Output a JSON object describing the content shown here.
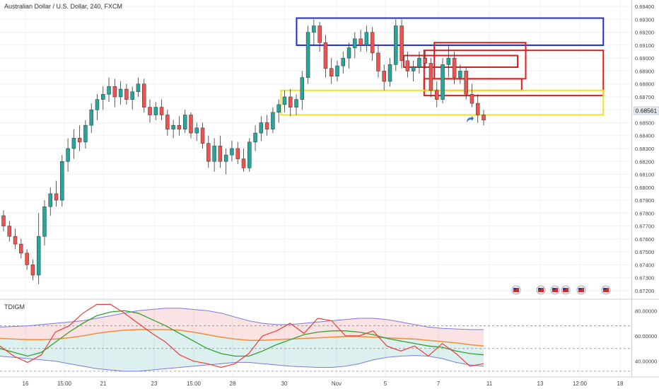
{
  "symbol_title": "Australian Dollar / U.S. Dollar, 240, FXCM",
  "indicator_label": "TDIGM",
  "last_price_label": "0.68561",
  "colors": {
    "bull": "#26a69a",
    "bear": "#ef5350",
    "blue_box": "#1a2fd6",
    "red_box": "#e01b1b",
    "yellow_box": "#f0e030",
    "rsi": "#ef3b3b",
    "ma_green": "#33a02c",
    "ma_orange": "#f08c3a",
    "band": "#7b7bd6",
    "grid": "#eef0f4"
  },
  "chart_data": [
    {
      "type": "candlestick",
      "title": "Australian Dollar / U.S. Dollar, 240, FXCM",
      "y_tick_labels": [
        "0.69400",
        "0.69300",
        "0.69200",
        "0.69100",
        "0.69000",
        "0.68900",
        "0.68800",
        "0.68700",
        "0.68600",
        "0.68500",
        "0.68400",
        "0.68300",
        "0.68200",
        "0.68100",
        "0.68000",
        "0.67900",
        "0.67800",
        "0.67700",
        "0.67600",
        "0.67500",
        "0.67400",
        "0.67300",
        "0.67200"
      ],
      "ylim": [
        0.6715,
        0.6945
      ],
      "x_tick_labels": [
        "16",
        "15:00",
        "21",
        "23",
        "15:00",
        "28",
        "30",
        "Nov",
        "5",
        "7",
        "11",
        "13",
        "12:00",
        "18"
      ],
      "candles": [
        [
          0.6778,
          0.6782,
          0.6766,
          0.677
        ],
        [
          0.677,
          0.6774,
          0.6758,
          0.6762
        ],
        [
          0.6762,
          0.6768,
          0.6752,
          0.6756
        ],
        [
          0.6756,
          0.676,
          0.6745,
          0.6749
        ],
        [
          0.6749,
          0.6752,
          0.6736,
          0.674
        ],
        [
          0.674,
          0.6744,
          0.6728,
          0.6732
        ],
        [
          0.6732,
          0.678,
          0.6725,
          0.6762
        ],
        [
          0.6762,
          0.679,
          0.6755,
          0.6785
        ],
        [
          0.6785,
          0.68,
          0.6778,
          0.6795
        ],
        [
          0.6795,
          0.6805,
          0.6785,
          0.679
        ],
        [
          0.679,
          0.6825,
          0.6785,
          0.682
        ],
        [
          0.682,
          0.6838,
          0.6812,
          0.683
        ],
        [
          0.683,
          0.6845,
          0.6822,
          0.6838
        ],
        [
          0.6838,
          0.6848,
          0.6828,
          0.6835
        ],
        [
          0.6835,
          0.6852,
          0.683,
          0.6848
        ],
        [
          0.6848,
          0.6865,
          0.6842,
          0.686
        ],
        [
          0.686,
          0.6872,
          0.6852,
          0.6868
        ],
        [
          0.6868,
          0.6878,
          0.686,
          0.6872
        ],
        [
          0.6872,
          0.6885,
          0.6866,
          0.6878
        ],
        [
          0.6878,
          0.6884,
          0.6862,
          0.687
        ],
        [
          0.687,
          0.6882,
          0.6864,
          0.6876
        ],
        [
          0.6876,
          0.688,
          0.6864,
          0.6868
        ],
        [
          0.6868,
          0.6878,
          0.686,
          0.6874
        ],
        [
          0.6874,
          0.6885,
          0.687,
          0.688
        ],
        [
          0.688,
          0.6884,
          0.6858,
          0.6862
        ],
        [
          0.6862,
          0.6868,
          0.685,
          0.6856
        ],
        [
          0.6856,
          0.6866,
          0.6852,
          0.6862
        ],
        [
          0.6862,
          0.6868,
          0.6852,
          0.6856
        ],
        [
          0.6856,
          0.686,
          0.684,
          0.6845
        ],
        [
          0.6845,
          0.6852,
          0.6838,
          0.6848
        ],
        [
          0.6848,
          0.6855,
          0.684,
          0.6845
        ],
        [
          0.6845,
          0.686,
          0.6842,
          0.6856
        ],
        [
          0.6856,
          0.6858,
          0.6838,
          0.6842
        ],
        [
          0.6842,
          0.685,
          0.6836,
          0.6846
        ],
        [
          0.6846,
          0.685,
          0.683,
          0.6834
        ],
        [
          0.6834,
          0.684,
          0.6815,
          0.682
        ],
        [
          0.682,
          0.6838,
          0.6812,
          0.6832
        ],
        [
          0.6832,
          0.684,
          0.6815,
          0.682
        ],
        [
          0.682,
          0.683,
          0.681,
          0.6825
        ],
        [
          0.6825,
          0.6836,
          0.682,
          0.683
        ],
        [
          0.683,
          0.6835,
          0.6818,
          0.6822
        ],
        [
          0.6822,
          0.683,
          0.6812,
          0.6815
        ],
        [
          0.6815,
          0.6838,
          0.6812,
          0.6835
        ],
        [
          0.6835,
          0.6848,
          0.6828,
          0.6842
        ],
        [
          0.6842,
          0.6855,
          0.6836,
          0.685
        ],
        [
          0.685,
          0.6856,
          0.684,
          0.6845
        ],
        [
          0.6845,
          0.6862,
          0.6842,
          0.6858
        ],
        [
          0.6858,
          0.6868,
          0.685,
          0.6864
        ],
        [
          0.6864,
          0.6875,
          0.6858,
          0.687
        ],
        [
          0.687,
          0.6876,
          0.6855,
          0.6862
        ],
        [
          0.6862,
          0.6872,
          0.6856,
          0.6868
        ],
        [
          0.6868,
          0.689,
          0.686,
          0.6885
        ],
        [
          0.6885,
          0.6925,
          0.688,
          0.692
        ],
        [
          0.692,
          0.693,
          0.691,
          0.6925
        ],
        [
          0.6925,
          0.6928,
          0.6905,
          0.6912
        ],
        [
          0.6912,
          0.6918,
          0.6885,
          0.6892
        ],
        [
          0.6892,
          0.69,
          0.688,
          0.6886
        ],
        [
          0.6886,
          0.6898,
          0.6882,
          0.6894
        ],
        [
          0.6894,
          0.6905,
          0.6888,
          0.69
        ],
        [
          0.69,
          0.6912,
          0.6892,
          0.6908
        ],
        [
          0.6908,
          0.692,
          0.69,
          0.6915
        ],
        [
          0.6915,
          0.6922,
          0.6905,
          0.691
        ],
        [
          0.691,
          0.6925,
          0.6905,
          0.692
        ],
        [
          0.692,
          0.6924,
          0.6898,
          0.6904
        ],
        [
          0.6904,
          0.691,
          0.6885,
          0.689
        ],
        [
          0.689,
          0.6895,
          0.6875,
          0.6882
        ],
        [
          0.6882,
          0.69,
          0.6878,
          0.6895
        ],
        [
          0.6895,
          0.693,
          0.689,
          0.6925
        ],
        [
          0.6925,
          0.693,
          0.6892,
          0.6898
        ],
        [
          0.6898,
          0.6905,
          0.6885,
          0.689
        ],
        [
          0.689,
          0.6898,
          0.6882,
          0.6893
        ],
        [
          0.6893,
          0.6905,
          0.6888,
          0.69
        ],
        [
          0.69,
          0.6906,
          0.6892,
          0.6896
        ],
        [
          0.6896,
          0.69,
          0.687,
          0.6875
        ],
        [
          0.6875,
          0.6882,
          0.6862,
          0.6868
        ],
        [
          0.6868,
          0.69,
          0.6865,
          0.6895
        ],
        [
          0.6895,
          0.691,
          0.6885,
          0.69
        ],
        [
          0.69,
          0.6905,
          0.688,
          0.6885
        ],
        [
          0.6885,
          0.6895,
          0.688,
          0.689
        ],
        [
          0.689,
          0.6893,
          0.6868,
          0.6872
        ],
        [
          0.6872,
          0.688,
          0.6862,
          0.6865
        ],
        [
          0.6865,
          0.6872,
          0.685,
          0.6856
        ],
        [
          0.6856,
          0.686,
          0.6848,
          0.6852
        ]
      ],
      "zones": [
        {
          "name": "blue-zone",
          "color": "blue",
          "x_from": 0.4697,
          "x_to": 0.9555,
          "y_top": 0.6931,
          "y_bottom": 0.691
        },
        {
          "name": "red-zone-outer",
          "color": "red",
          "x_from": 0.6717,
          "x_to": 0.9555,
          "y_top": 0.6906,
          "y_bottom": 0.6871
        },
        {
          "name": "red-zone-inner",
          "color": "red",
          "x_from": 0.6878,
          "x_to": 0.8326,
          "y_top": 0.6912,
          "y_bottom": 0.6884
        },
        {
          "name": "red-zone-small",
          "color": "red",
          "x_from": 0.6395,
          "x_to": 0.8198,
          "y_top": 0.6902,
          "y_bottom": 0.6893
        },
        {
          "name": "red-zone-lower",
          "color": "red",
          "x_from": 0.6717,
          "x_to": 0.8262,
          "y_top": 0.6884,
          "y_bottom": 0.6875
        },
        {
          "name": "yellow-zone",
          "color": "yellow",
          "x_from": 0.445,
          "x_to": 0.9555,
          "y_top": 0.6875,
          "y_bottom": 0.6856
        }
      ],
      "grid": true
    },
    {
      "type": "line",
      "title": "TDIGM",
      "y_tick_labels": [
        "80.00000",
        "60.00000",
        "40.00000"
      ],
      "ylim": [
        28,
        88
      ],
      "levels": [
        68,
        50,
        32
      ],
      "upper_band": [
        67,
        67.5,
        68,
        69,
        70,
        71,
        72,
        74,
        76,
        78,
        80,
        81,
        82,
        82,
        81,
        80,
        78,
        75,
        72,
        70,
        69,
        69,
        70,
        71,
        72,
        73,
        74,
        74,
        73,
        71,
        69,
        67,
        66,
        65.5,
        65,
        65
      ],
      "lower_band": [
        44,
        43,
        42,
        41,
        40,
        38,
        36,
        34,
        33,
        32,
        32,
        33,
        34,
        35,
        36,
        37,
        38,
        39,
        39,
        38,
        37,
        36,
        35.5,
        35,
        35,
        36,
        38,
        41,
        43,
        44,
        44.5,
        44,
        42,
        39,
        37,
        36
      ],
      "rsi": [
        52,
        44,
        39,
        45,
        63,
        68,
        78,
        85,
        85,
        78,
        70,
        62,
        55,
        45,
        40,
        38,
        35,
        38,
        46,
        60,
        64,
        70,
        62,
        74,
        72,
        60,
        60,
        64,
        52,
        48,
        52,
        44,
        54,
        46,
        36,
        38
      ],
      "signal_ma": [
        50,
        47,
        44,
        47,
        55,
        63,
        70,
        76,
        79,
        80,
        78,
        73,
        68,
        62,
        56,
        50,
        46,
        44,
        44,
        48,
        53,
        57,
        61,
        63,
        64,
        64,
        63,
        61,
        58,
        56,
        54,
        52,
        51,
        48,
        46,
        45
      ],
      "market_base": [
        58,
        57.5,
        57,
        57,
        57.5,
        58.5,
        60,
        62,
        63.5,
        64.5,
        65,
        65,
        65,
        64.5,
        63,
        61,
        59,
        57.5,
        56.5,
        56.5,
        57,
        57.5,
        58,
        58.5,
        59,
        59.5,
        59.5,
        59,
        58.5,
        58,
        57.5,
        56.5,
        55.5,
        54.5,
        53,
        52
      ]
    }
  ]
}
